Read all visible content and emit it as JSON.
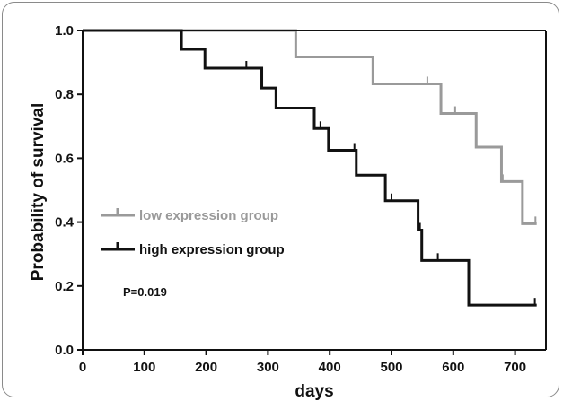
{
  "chart_data": {
    "type": "line",
    "subtype": "kaplan-meier step",
    "xlabel": "days",
    "ylabel": "Probability of survival",
    "xlim": [
      0,
      750
    ],
    "ylim": [
      0.0,
      1.0
    ],
    "x_ticks": [
      0,
      100,
      200,
      300,
      400,
      500,
      600,
      700
    ],
    "y_ticks": [
      0.0,
      0.2,
      0.4,
      0.6,
      0.8,
      1.0
    ],
    "y_tick_labels": [
      "0.0",
      "0.2",
      "0.4",
      "0.6",
      "0.8",
      "1.0"
    ],
    "grid": false,
    "legend_position": "left-middle",
    "annotation": "P=0.019",
    "series": [
      {
        "name": "low expression group",
        "color": "#9a9a9a",
        "steps": [
          [
            0,
            1.0
          ],
          [
            345,
            0.917
          ],
          [
            470,
            0.833
          ],
          [
            580,
            0.74
          ],
          [
            637,
            0.635
          ],
          [
            678,
            0.527
          ],
          [
            712,
            0.395
          ],
          [
            735,
            0.395
          ]
        ],
        "censored": [
          [
            558,
            0.833
          ],
          [
            603,
            0.74
          ],
          [
            680,
            0.527
          ],
          [
            733,
            0.395
          ]
        ]
      },
      {
        "name": "high expression group",
        "color": "#111111",
        "steps": [
          [
            0,
            1.0
          ],
          [
            160,
            0.941
          ],
          [
            198,
            0.882
          ],
          [
            290,
            0.82
          ],
          [
            313,
            0.757
          ],
          [
            375,
            0.693
          ],
          [
            398,
            0.625
          ],
          [
            443,
            0.547
          ],
          [
            490,
            0.467
          ],
          [
            543,
            0.375
          ],
          [
            549,
            0.28
          ],
          [
            625,
            0.14
          ],
          [
            735,
            0.14
          ]
        ],
        "censored": [
          [
            265,
            0.882
          ],
          [
            385,
            0.693
          ],
          [
            440,
            0.625
          ],
          [
            500,
            0.467
          ],
          [
            546,
            0.375
          ],
          [
            575,
            0.28
          ],
          [
            732,
            0.14
          ]
        ]
      }
    ]
  }
}
